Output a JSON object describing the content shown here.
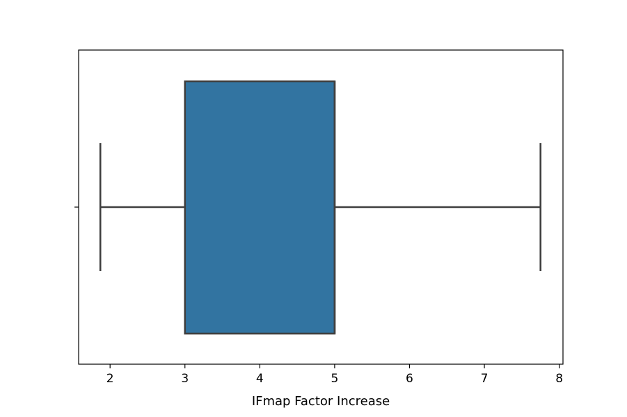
{
  "chart_data": {
    "type": "box",
    "orientation": "horizontal",
    "xlabel": "IFmap Factor Increase",
    "ylabel": "",
    "xlim": [
      1.58,
      8.05
    ],
    "xticks": [
      "2",
      "3",
      "4",
      "5",
      "6",
      "7",
      "8"
    ],
    "grid": false,
    "box": {
      "whisker_low": 1.87,
      "q1": 3.0,
      "median": 5.0,
      "q3": 5.0,
      "whisker_high": 7.75
    },
    "colors": {
      "box_fill": "#3274a1",
      "lines": "#3f3f3f"
    }
  }
}
